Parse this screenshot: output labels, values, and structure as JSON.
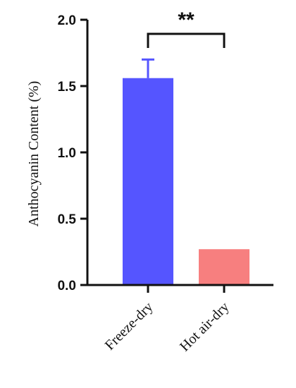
{
  "chart_data": {
    "type": "bar",
    "title": "",
    "xlabel": "",
    "ylabel": "Anthocyanin Content (%)",
    "categories": [
      "Freeze-dry",
      "Hot air-dry"
    ],
    "values": [
      1.56,
      0.27
    ],
    "error_bars": [
      0.14,
      null
    ],
    "ylim": [
      0,
      2.0
    ],
    "yticks": [
      "0.0",
      "0.5",
      "1.0",
      "1.5",
      "2.0"
    ],
    "grid": false,
    "legend": "none",
    "colors": [
      "#5555ff",
      "#f77f7f"
    ],
    "annotation": "**"
  }
}
